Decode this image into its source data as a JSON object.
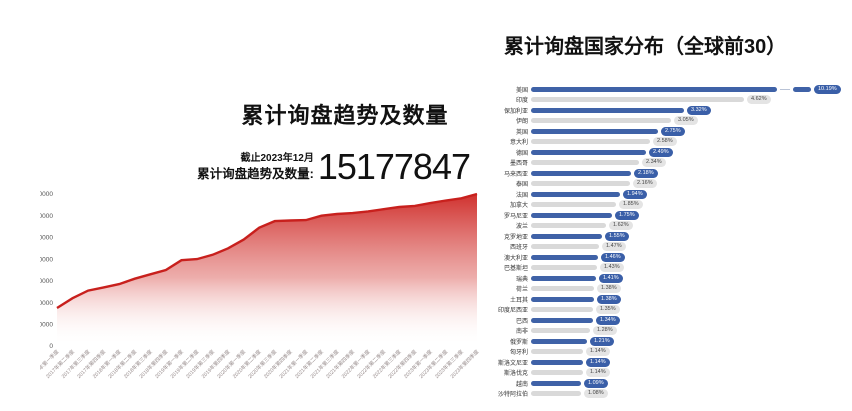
{
  "chart_data": [
    {
      "id": "trend",
      "type": "area",
      "title": "累计询盘趋势及数量",
      "annotation": {
        "line1": "截止2023年12月",
        "line2": "累计询盘趋势及数量:",
        "big_number": "15177847"
      },
      "categories": [
        "2017年第一季度",
        "2017年第二季度",
        "2017年第三季度",
        "2017年第四季度",
        "2018年第一季度",
        "2018年第二季度",
        "2018年第三季度",
        "2018年第四季度",
        "2019年第一季度",
        "2019年第二季度",
        "2019年第三季度",
        "2019年第四季度",
        "2020年第一季度",
        "2020年第二季度",
        "2020年第三季度",
        "2020年第四季度",
        "2021年第一季度",
        "2021年第二季度",
        "2021年第三季度",
        "2021年第四季度",
        "2022年第一季度",
        "2022年第二季度",
        "2022年第三季度",
        "2022年第四季度",
        "2023年第一季度",
        "2023年第二季度",
        "2023年第三季度",
        "2023年第四季度"
      ],
      "values": [
        175000,
        220000,
        255000,
        270000,
        285000,
        310000,
        330000,
        350000,
        395000,
        400000,
        420000,
        450000,
        490000,
        545000,
        575000,
        578000,
        580000,
        600000,
        608000,
        612000,
        620000,
        630000,
        640000,
        645000,
        658000,
        670000,
        680000,
        700000
      ],
      "ylim": [
        0,
        700000
      ],
      "yticks": [
        0,
        100000,
        200000,
        300000,
        400000,
        500000,
        600000,
        700000
      ],
      "line_color": "#c8201d",
      "fill_top": "rgba(206,41,38,0.96)",
      "fill_mid": "rgba(219,92,88,0.50)",
      "fill_bottom": "rgba(255,255,255,0)",
      "grid": false,
      "legend": "none"
    },
    {
      "id": "countries",
      "type": "bar",
      "title": "累计询盘国家分布（全球前30）",
      "orientation": "horizontal",
      "xlim_percent": [
        0,
        7
      ],
      "colors": {
        "blue": "#3f62a7",
        "gray": "#d9d9d9"
      },
      "bars": [
        {
          "label": "美国",
          "value": 10.19,
          "display": "10.19%",
          "color": "blue",
          "truncated": true
        },
        {
          "label": "印度",
          "value": 4.62,
          "display": "4.62%",
          "color": "gray"
        },
        {
          "label": "保加利亚",
          "value": 3.32,
          "display": "3.32%",
          "color": "blue"
        },
        {
          "label": "伊朗",
          "value": 3.05,
          "display": "3.05%",
          "color": "gray"
        },
        {
          "label": "英国",
          "value": 2.75,
          "display": "2.75%",
          "color": "blue"
        },
        {
          "label": "意大利",
          "value": 2.58,
          "display": "2.58%",
          "color": "gray"
        },
        {
          "label": "德国",
          "value": 2.49,
          "display": "2.49%",
          "color": "blue"
        },
        {
          "label": "墨西哥",
          "value": 2.34,
          "display": "2.34%",
          "color": "gray"
        },
        {
          "label": "马来西亚",
          "value": 2.18,
          "display": "2.18%",
          "color": "blue"
        },
        {
          "label": "泰国",
          "value": 2.16,
          "display": "2.16%",
          "color": "gray"
        },
        {
          "label": "法国",
          "value": 1.94,
          "display": "1.94%",
          "color": "blue"
        },
        {
          "label": "加拿大",
          "value": 1.85,
          "display": "1.85%",
          "color": "gray"
        },
        {
          "label": "罗马尼亚",
          "value": 1.75,
          "display": "1.75%",
          "color": "blue"
        },
        {
          "label": "波兰",
          "value": 1.62,
          "display": "1.62%",
          "color": "gray"
        },
        {
          "label": "克罗地亚",
          "value": 1.55,
          "display": "1.55%",
          "color": "blue"
        },
        {
          "label": "西班牙",
          "value": 1.47,
          "display": "1.47%",
          "color": "gray"
        },
        {
          "label": "澳大利亚",
          "value": 1.46,
          "display": "1.46%",
          "color": "blue"
        },
        {
          "label": "巴基斯坦",
          "value": 1.43,
          "display": "1.43%",
          "color": "gray"
        },
        {
          "label": "瑞典",
          "value": 1.41,
          "display": "1.41%",
          "color": "blue"
        },
        {
          "label": "荷兰",
          "value": 1.38,
          "display": "1.38%",
          "color": "gray"
        },
        {
          "label": "土耳其",
          "value": 1.38,
          "display": "1.38%",
          "color": "blue"
        },
        {
          "label": "印度尼西亚",
          "value": 1.35,
          "display": "1.35%",
          "color": "gray"
        },
        {
          "label": "巴西",
          "value": 1.34,
          "display": "1.34%",
          "color": "blue"
        },
        {
          "label": "南非",
          "value": 1.28,
          "display": "1.28%",
          "color": "gray"
        },
        {
          "label": "俄罗斯",
          "value": 1.21,
          "display": "1.21%",
          "color": "blue"
        },
        {
          "label": "匈牙利",
          "value": 1.14,
          "display": "1.14%",
          "color": "gray"
        },
        {
          "label": "斯洛文尼亚",
          "value": 1.14,
          "display": "1.14%",
          "color": "blue"
        },
        {
          "label": "斯洛伐克",
          "value": 1.14,
          "display": "1.14%",
          "color": "gray"
        },
        {
          "label": "越南",
          "value": 1.09,
          "display": "1.09%",
          "color": "blue"
        },
        {
          "label": "沙特阿拉伯",
          "value": 1.08,
          "display": "1.08%",
          "color": "gray"
        }
      ]
    }
  ]
}
